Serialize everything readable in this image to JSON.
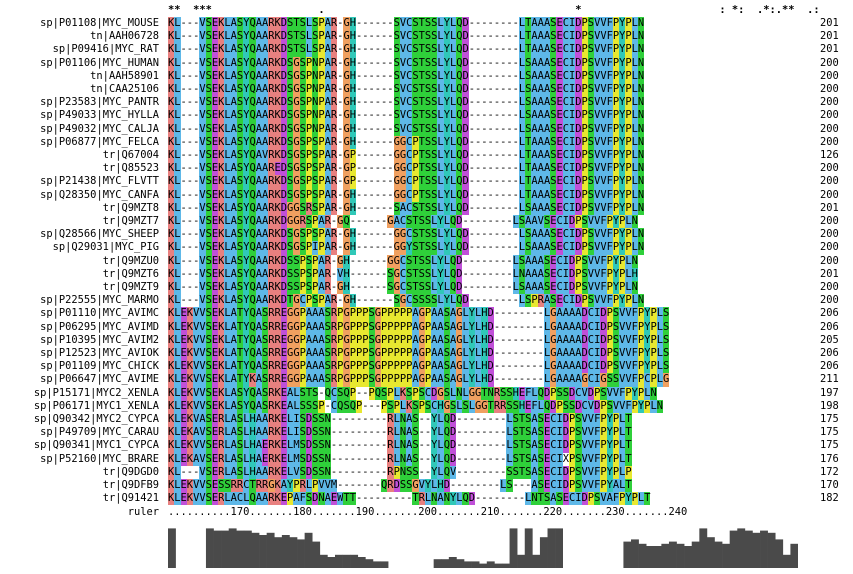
{
  "consensus": "**  ***                 .                                        *                      : *:  .*:.**  .:",
  "sequences": [
    {
      "name": "sp|P01108|MYC_MOUSE",
      "seq": "KL---VSEKLASYQAARKDSTSLSPAR-GH------SVCSTSSLYLQD--------LTAAASECIDPSVVFPYPLN",
      "end": "201"
    },
    {
      "name": "tn|AAH06728",
      "seq": "KL---VSEKLASYQAARKDSTSLSPAR-GH------SVCSTSSLYLQD--------LTAAASECIDPSVVFPYPLN",
      "end": "201"
    },
    {
      "name": "sp|P09416|MYC_RAT",
      "seq": "KL---VSEKLASYQAARKDSTSLSPAR-GH------SVCSTSSLYLQD--------LTAAASECIDPSVVFPYPLN",
      "end": "201"
    },
    {
      "name": "sp|P01106|MYC_HUMAN",
      "seq": "KL---VSEKLASYQAARKDSGSPNPAR-GH------SVCSTSSLYLQD--------LSAAASECIDPSVVFPYPLN",
      "end": "200"
    },
    {
      "name": "tn|AAH58901",
      "seq": "KL---VSEKLASYQAARKDSGSPNPAR-GH------SVCSTSSLYLQD--------LSAAASECIDPSVVFPYPLN",
      "end": "200"
    },
    {
      "name": "tn|CAA25106",
      "seq": "KL---VSEKLASYQAARKDSGSPNPAR-GH------SVCSTSSLYLQD--------LSAAASECIDPSVVFPYPLN",
      "end": "200"
    },
    {
      "name": "sp|P23583|MYC_PANTR",
      "seq": "KL---VSEKLASYQAARKDSGSPNPAR-GH------SVCSTSSLYLQD--------LSAAASECIDPSVVFPYPLN",
      "end": "200"
    },
    {
      "name": "sp|P49033|MYC_HYLLA",
      "seq": "KL---VSEKLASYQAARKDSGSPNPAR-GH------SVCSTSSLYLQD--------LSAAASECIDPSVVFPYPLN",
      "end": "200"
    },
    {
      "name": "sp|P49032|MYC_CALJA",
      "seq": "KL---VSEKLASYQAARKDSGSPNPAR-GH------SVCSTSSLYLQD--------LSAAASECIDPSVVFPYPLN",
      "end": "200"
    },
    {
      "name": "sp|P06877|MYC_FELCA",
      "seq": "KL---VSEKLASYQAARKDSGSPSPAR-GH------GGCPTSSLYLQD--------LTAAASECIDPSVVFPYPLN",
      "end": "200"
    },
    {
      "name": "tr|Q67004",
      "seq": "KL---VSEKLASYQAVRKDSGSPSPAR-GP------GGCPTSSLYLQD--------LTAAASECIDPSVVFPYPLN",
      "end": "126"
    },
    {
      "name": "tr|Q85523",
      "seq": "KL---VSEKLASYQAAREDSGSPSPAR-GP------GGCPTSSLYLQD--------LTAAASECIDPSVVFPYPLN",
      "end": "200"
    },
    {
      "name": "sp|P21438|MYC_FLVTT",
      "seq": "KL---VSEKLASYQAARKDSGSPSPAR-GP------GGCPTSSLYLQD--------LTAAASECIDPSVVFPYPLN",
      "end": "200"
    },
    {
      "name": "sp|Q28350|MYC_CANFA",
      "seq": "KL---VSEKLASYQAARKDSGSPSPAR-GH------GGCPTSSLYLQD--------LTAAASECIDPSVVFPYPLN",
      "end": "200"
    },
    {
      "name": "tr|Q9MZT8",
      "seq": "KL---VSEKLASYQAARKDGGSRSPAR-GH------SACSTSSLYLQD--------LSAAASECIDPSVVFPYPLN",
      "end": "201"
    },
    {
      "name": "tr|Q9MZT7",
      "seq": "KL---VSEKLASYQAARKDGGRSPAR-GQ------GACSTSSLYLQD--------LSAAVSECIDPSVVFPYPLN",
      "end": "200"
    },
    {
      "name": "sp|Q28566|MYC_SHEEP",
      "seq": "KL---VSEKLASYQAARKDSGSPSPAR-GH------GGCSTSSLYLQD--------LSAAASECIDPSVVFPYPLN",
      "end": "200"
    },
    {
      "name": "sp|Q29031|MYC_PIG",
      "seq": "KL---VSEKLASYQAARKDSGSPIPAR-GH------GGYSTSSLYLQD--------LSAAASECIDPSVVFPYPLN",
      "end": "200"
    },
    {
      "name": "tr|Q9MZU0",
      "seq": "KL---VSEKLASYQAARKDSSPSPAR-GH------GGCSTSSLYLQD--------LSAAASECIDPSVVFPYPLN",
      "end": "200"
    },
    {
      "name": "tr|Q9MZT6",
      "seq": "KL---VSEKLASYQAARKDSSPSPAR-VH------SGCSTSSLYLQD--------LNAAASECIDPSVVFPYPLH",
      "end": "201"
    },
    {
      "name": "tr|Q9MZT9",
      "seq": "KL---VSEKLASYQAARKDSSPSPAR-GH------SGCSTSSLYLQD--------LSAAASECIDPSVVFPYPLN",
      "end": "200"
    },
    {
      "name": "sp|P22555|MYC_MARMO",
      "seq": "KL---VSEKLASYQAARKDTGCPSPAR-GH------SGCSSSSLYLQD--------LSPRASECIDPSVVFPYPLN",
      "end": "200"
    },
    {
      "name": "sp|P01110|MYC_AVIMC",
      "seq": "KLEKVVSEKLATYQASRREGGPAAASRPGPPPSGPPPPPAGPAASAGLYLHD--------LGAAAADCIDPSVVFPYPLS",
      "end": "206"
    },
    {
      "name": "sp|P06295|MYC_AVIMD",
      "seq": "KLEKVVSEKLATYQASRREGGPAAASRPGPPPSGPPPPPAGPAASAGLYLHD--------LGAAAADCIDPSVVFPYPLS",
      "end": "206"
    },
    {
      "name": "sp|P10395|MYC_AVIM2",
      "seq": "KLEKVVSEKLATYQASRREGGPAAASRPGPPPSGPPPPPAGPAASAGLYLHD--------LGAAAADCIDPSVVFPYPLS",
      "end": "205"
    },
    {
      "name": "sp|P12523|MYC_AVIOK",
      "seq": "KLEKVVSEKLATYQASRREGGPAAASRPGPPPSGPPPPPAGPAASAGLYLHD--------LGAAAADCIDPSVVFPYPLS",
      "end": "206"
    },
    {
      "name": "sp|P01109|MYC_CHICK",
      "seq": "KLEKVVSEKLATYQASRREGGPAAASRPGPPPSGPPPPPAGPAASAGLYLHD--------LGAAAADCIDPSVVFPYPLS",
      "end": "206"
    },
    {
      "name": "sp|P06647|MYC_AVIME",
      "seq": "KLEKVVSEKLATYKASRREGGPAAASRPGPPPSGPPPPPAGPAASAGLYLHD--------LGAAAAGCIGSSVVFPCPLG",
      "end": "211"
    },
    {
      "name": "sp|P15171|MYC2_XENLA",
      "seq": "KLEKVVSEKLASYQASRKEALSTS-QCSQP--PQSPLKSPSCDGSLNLGGTNRSSHEFLQDPSSDCVDPSVVFPYPLN",
      "end": "197"
    },
    {
      "name": "sp|P06171|MYC1_XENLA",
      "seq": "KLEKVVSEKLASYQASRKEALSSSP-CQSQP---PSPLKSPSCHGSLSLGGTRRSSHEFLQDPSSDCVDPSVVFPYPLN",
      "end": "198"
    },
    {
      "name": "sp|Q90342|MYC2_CYPCA",
      "seq": "KLEKVASERLASLHAARKELISDSSN---------RLNAS--YLQD--------LSTSASECIDPSVVFPYPLT",
      "end": "175"
    },
    {
      "name": "sp|P49709|MYC_CARAU",
      "seq": "KLEKAVSERLASLHAARKELISDSSN---------RLNAS--YLQD--------LSTSASECIDPSVVFPYPLT",
      "end": "175"
    },
    {
      "name": "sp|Q90341|MYC1_CYPCA",
      "seq": "KLEKVVSERLASLHAERKELMSDSSN---------RLNAS--YLQD--------LSTSASECIDPSVVFPYPLT",
      "end": "175"
    },
    {
      "name": "sp|P52160|MYC_BRARE",
      "seq": "KLEKAVSERLASLHAERKELMSDSSN---------RLNAS--YLQD--------LSTSASECIXPSVVFPYPLT",
      "end": "176"
    },
    {
      "name": "tr|Q9DGD0",
      "seq": "KL---VSERLASLHAARKELVSDSSN---------RPNSS--YLQV--------SSTSASECIDPSVVFPYPLP",
      "end": "172"
    },
    {
      "name": "tr|Q9DFB9",
      "seq": "KLEKVVSESSRRCTRRGKAYPRLPVVM-------QRDSSGVYLHD--------LS---ASECIDPSVVFPYALT",
      "end": "170"
    },
    {
      "name": "tr|Q91421",
      "seq": "KLEKVVSERLACLQAARKEPAFSDNAEWTT---------TRLNANYLQD--------LNTSASECIDPSVAFPYPLT",
      "end": "182"
    }
  ],
  "ruler": {
    "label": "ruler",
    "text": "..........170.......180.......190.......200.......210.......220.......230.......240"
  },
  "histogram": [
    0.9,
    0,
    0,
    0,
    0,
    0.9,
    0.85,
    0.85,
    0.9,
    0.85,
    0.85,
    0.8,
    0.75,
    0.8,
    0.7,
    0.75,
    0.7,
    0.65,
    0.8,
    0.6,
    0.3,
    0.25,
    0.3,
    0.3,
    0.3,
    0.25,
    0.2,
    0.15,
    0.15,
    0,
    0,
    0,
    0,
    0,
    0,
    0.2,
    0.2,
    0.25,
    0.2,
    0.15,
    0.15,
    0.1,
    0.15,
    0.1,
    0.1,
    0.9,
    0.3,
    0.9,
    0.3,
    0.7,
    0.9,
    0.9,
    0,
    0,
    0,
    0,
    0,
    0,
    0,
    0,
    0.6,
    0.65,
    0.55,
    0.5,
    0.5,
    0.55,
    0.6,
    0.55,
    0.5,
    0.6,
    0.9,
    0.7,
    0.6,
    0.55,
    0.85,
    0.9,
    0.85,
    0.8,
    0.85,
    0.8,
    0.65,
    0.3,
    0.55
  ]
}
